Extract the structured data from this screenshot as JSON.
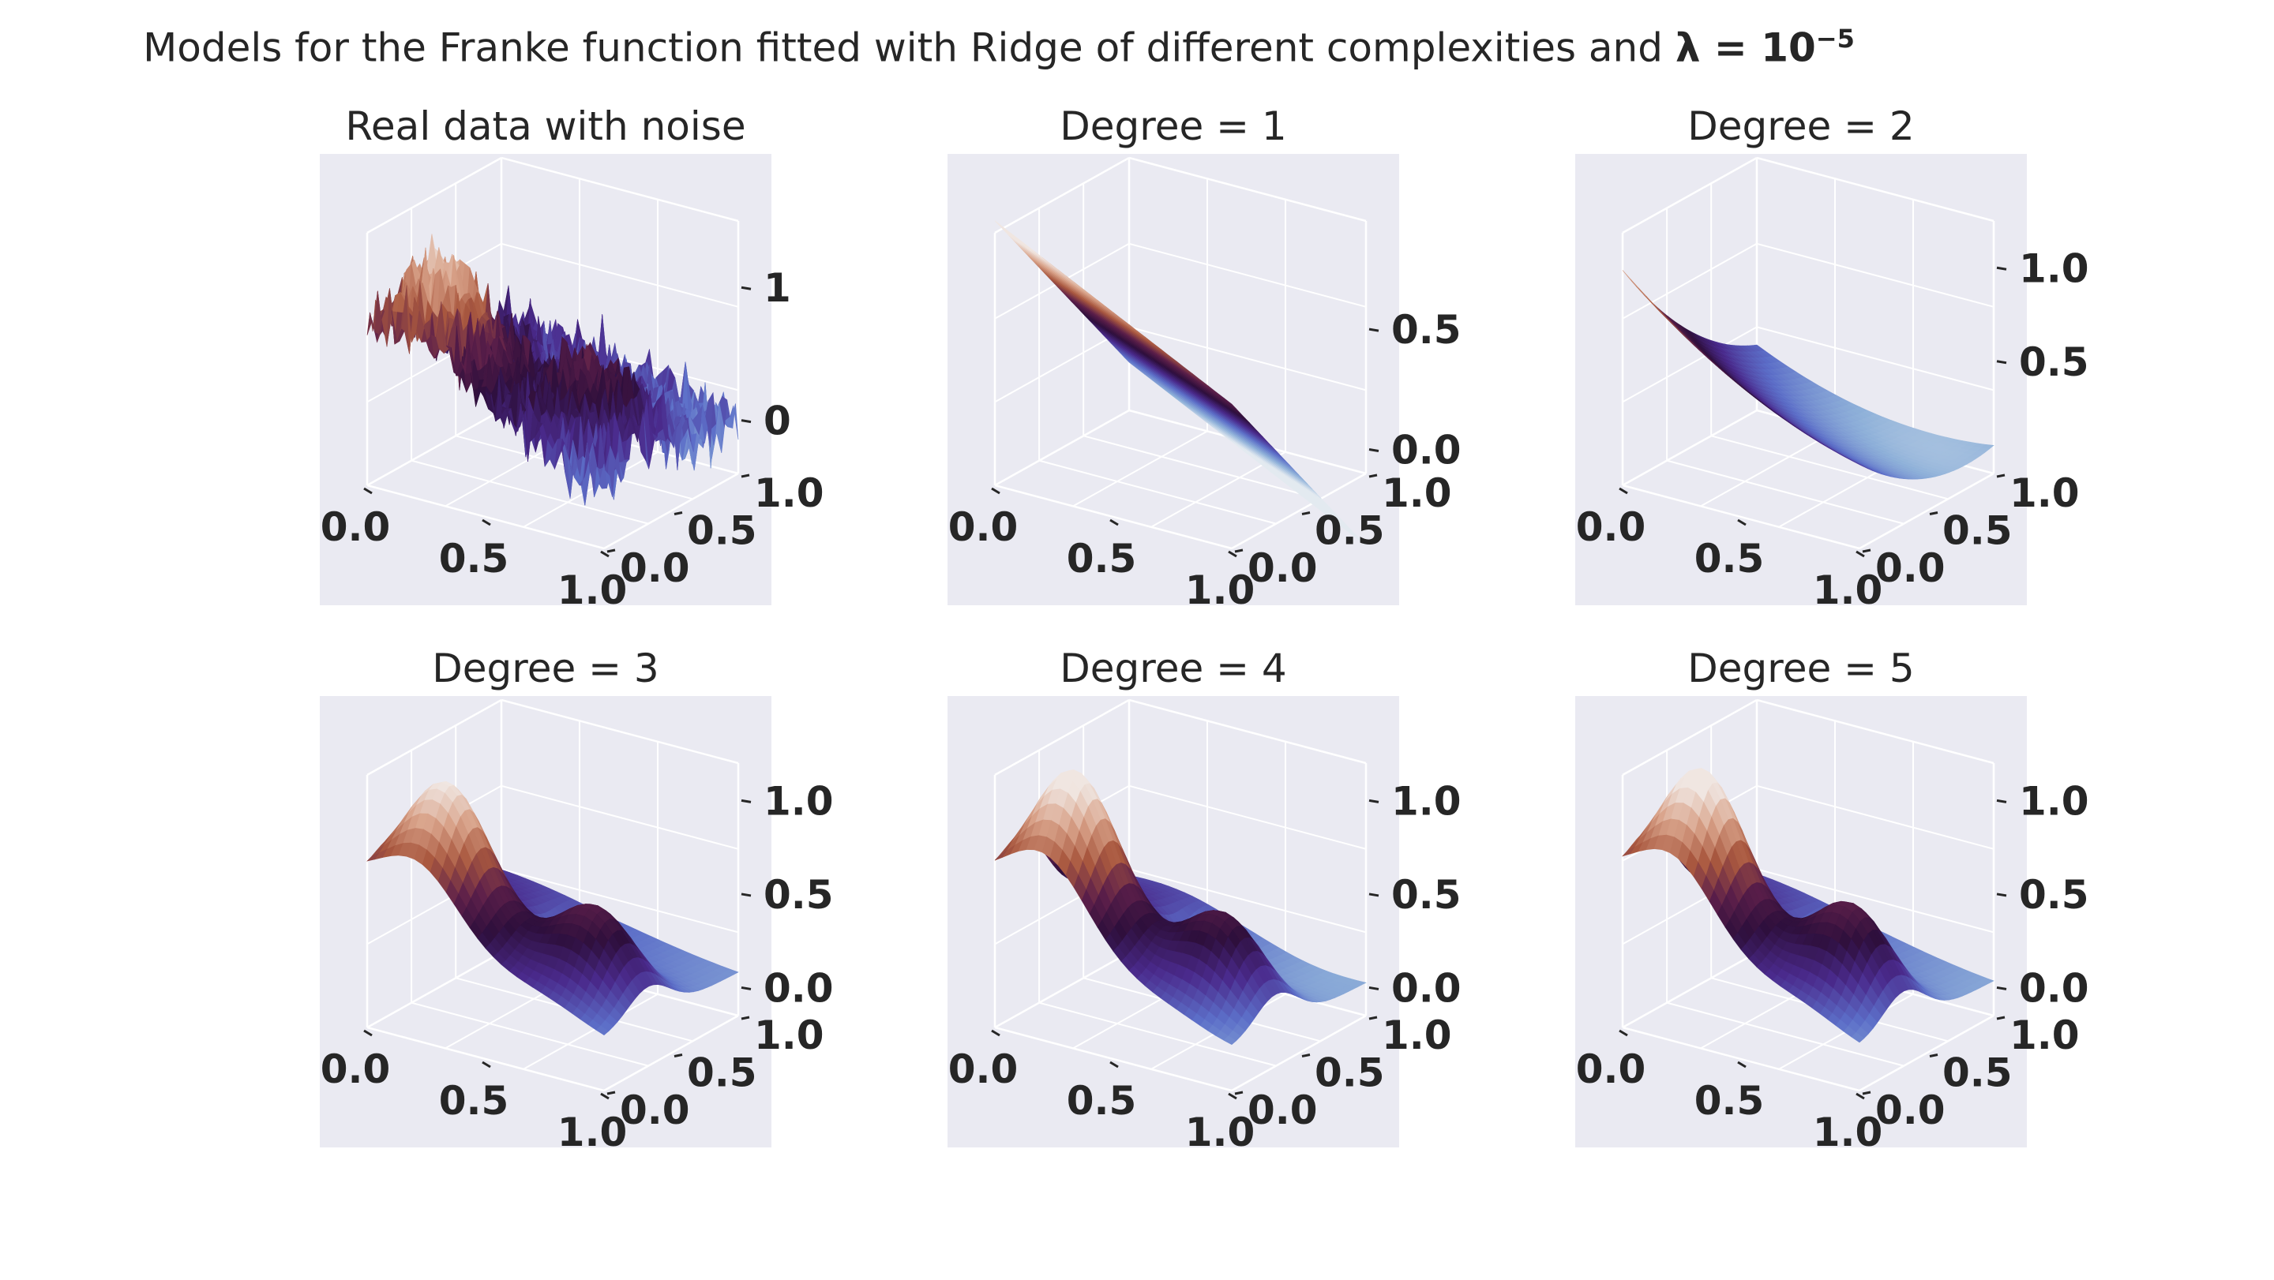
{
  "figure": {
    "title_prefix": "Models for the Franke function fitted with Ridge of different complexities and ",
    "title_lambda": "λ = 10",
    "title_exponent": "−5"
  },
  "colors": {
    "pane_background": "#eaeaf2",
    "grid": "#ffffff",
    "colormap": "twilight_shifted",
    "colormap_stops": [
      "#f0e6e1",
      "#d9a38a",
      "#a9583f",
      "#5c1f4a",
      "#2e0f3c",
      "#4a2a8c",
      "#5c6ec8",
      "#8fb1d9",
      "#e3eaf0"
    ]
  },
  "chart_data": [
    {
      "type": "surface",
      "title": "Real data with noise",
      "model": "franke_noisy",
      "x_ticks": [
        "0.0",
        "0.5",
        "1.0"
      ],
      "y_ticks": [
        "0.0",
        "0.5",
        "1.0"
      ],
      "z_ticks": [
        "0",
        "1"
      ],
      "x_range": [
        0,
        1
      ],
      "y_range": [
        0,
        1
      ],
      "z_range": [
        -0.4,
        1.5
      ]
    },
    {
      "type": "surface",
      "title": "Degree = 1",
      "model": "degree_1",
      "x_ticks": [
        "0.0",
        "0.5",
        "1.0"
      ],
      "y_ticks": [
        "0.0",
        "0.5",
        "1.0"
      ],
      "z_ticks": [
        "0.0",
        "0.5"
      ],
      "x_range": [
        0,
        1
      ],
      "y_range": [
        0,
        1
      ],
      "z_range": [
        -0.1,
        0.95
      ]
    },
    {
      "type": "surface",
      "title": "Degree = 2",
      "model": "degree_2",
      "x_ticks": [
        "0.0",
        "0.5",
        "1.0"
      ],
      "y_ticks": [
        "0.0",
        "0.5",
        "1.0"
      ],
      "z_ticks": [
        "0.5",
        "1.0"
      ],
      "x_range": [
        0,
        1
      ],
      "y_range": [
        0,
        1
      ],
      "z_range": [
        -0.1,
        1.25
      ]
    },
    {
      "type": "surface",
      "title": "Degree = 3",
      "model": "degree_3",
      "x_ticks": [
        "0.0",
        "0.5",
        "1.0"
      ],
      "y_ticks": [
        "0.0",
        "0.5",
        "1.0"
      ],
      "z_ticks": [
        "0.0",
        "0.5",
        "1.0"
      ],
      "x_range": [
        0,
        1
      ],
      "y_range": [
        0,
        1
      ],
      "z_range": [
        -0.15,
        1.2
      ]
    },
    {
      "type": "surface",
      "title": "Degree = 4",
      "model": "degree_4",
      "x_ticks": [
        "0.0",
        "0.5",
        "1.0"
      ],
      "y_ticks": [
        "0.0",
        "0.5",
        "1.0"
      ],
      "z_ticks": [
        "0.0",
        "0.5",
        "1.0"
      ],
      "x_range": [
        0,
        1
      ],
      "y_range": [
        0,
        1
      ],
      "z_range": [
        -0.15,
        1.2
      ]
    },
    {
      "type": "surface",
      "title": "Degree = 5",
      "model": "degree_5",
      "x_ticks": [
        "0.0",
        "0.5",
        "1.0"
      ],
      "y_ticks": [
        "0.0",
        "0.5",
        "1.0"
      ],
      "z_ticks": [
        "0.0",
        "0.5",
        "1.0"
      ],
      "x_range": [
        0,
        1
      ],
      "y_range": [
        0,
        1
      ],
      "z_range": [
        -0.15,
        1.2
      ]
    }
  ]
}
